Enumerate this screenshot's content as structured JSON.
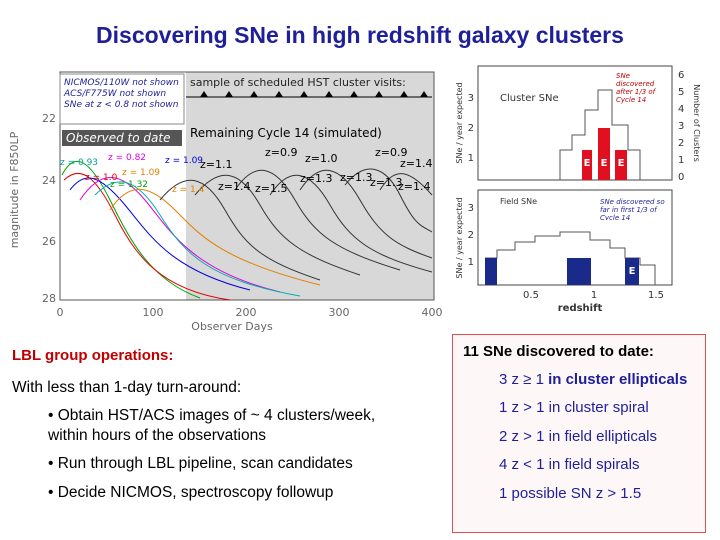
{
  "title": "Discovering SNe in high redshift galaxy clusters",
  "light_curve_plot": {
    "y_label": "magnitude in F850LP",
    "x_label": "Observer Days",
    "xticks": [
      "0",
      "100",
      "200",
      "300",
      "400"
    ],
    "yticks": [
      "22",
      "24",
      "26",
      "28"
    ],
    "notes": [
      "NICMOS/110W not shown",
      "ACS/F775W not shown",
      "SNe at z < 0.8 not shown"
    ],
    "visits_label": "sample of scheduled HST cluster visits:",
    "observed_label": "Observed to date",
    "remaining_label": "Remaining Cycle 14 (simulated)",
    "redshift_labels": [
      "z = 0.93",
      "z = 0.82",
      "z = 1.09",
      "z = 1.0",
      "z = 1.09",
      "z = 1.32",
      "z = 1.4",
      "z=1.1",
      "z=0.9",
      "z=1.0",
      "z=0.9",
      "z=1.4",
      "z=1.4",
      "z=1.5",
      "z=1.3",
      "z=1.3",
      "z=1.3",
      "z=1.4"
    ]
  },
  "redshift_plot": {
    "cluster_title": "Cluster SNe",
    "field_title": "Field SNe",
    "cluster_note": "SNe discovered after 1/3 of Cycle 14",
    "field_note": "SNe discovered so far in first 1/3 of Cycle 14",
    "y_label": "SNe / year expected",
    "y2_label": "Number of Clusters",
    "x_label": "redshift",
    "xticks": [
      "0.5",
      "1",
      "1.5"
    ],
    "cluster_yticks": [
      "3",
      "2",
      "1"
    ],
    "cluster_y2ticks": [
      "6",
      "5",
      "4",
      "3",
      "2",
      "1",
      "0"
    ],
    "field_yticks": [
      "3",
      "2",
      "1"
    ],
    "type_marker": "E"
  },
  "operations": {
    "heading": "LBL group operations:",
    "intro": "With less than 1-day turn-around:",
    "bullets": [
      [
        "• Obtain HST/ACS images of ~ 4 clusters/week,",
        "within hours of the observations"
      ],
      [
        "• Run through LBL pipeline, scan candidates"
      ],
      [
        "• Decide NICMOS, spectroscopy followup"
      ]
    ]
  },
  "discoveries": {
    "heading": "11 SNe discovered to date:",
    "items": [
      {
        "text": "3 z ≥ 1",
        "emphasis": "in cluster ellipticals"
      },
      {
        "text": "1 z > 1 in cluster spiral"
      },
      {
        "text": "2 z > 1 in field ellipticals"
      },
      {
        "text": "4 z < 1 in field spirals"
      },
      {
        "text": "1 possible SN z > 1.5"
      }
    ]
  }
}
